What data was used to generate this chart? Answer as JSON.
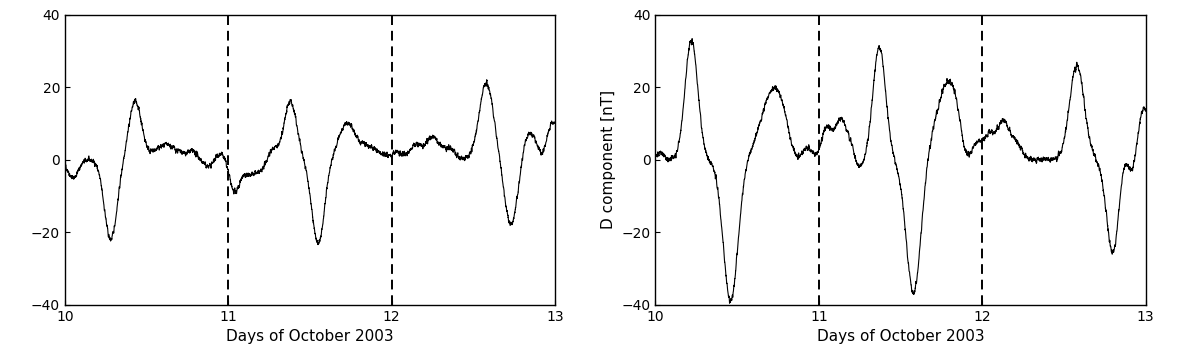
{
  "xlim": [
    10,
    13
  ],
  "ylim": [
    -40,
    40
  ],
  "xticks": [
    10,
    11,
    12,
    13
  ],
  "yticks": [
    -40,
    -20,
    0,
    20,
    40
  ],
  "xlabel": "Days of October 2003",
  "ylabel_right": "D component [nT]",
  "vlines": [
    11,
    12
  ],
  "figsize": [
    11.81,
    3.63
  ],
  "dpi": 100,
  "line_color": "#000000",
  "background_color": "#ffffff"
}
